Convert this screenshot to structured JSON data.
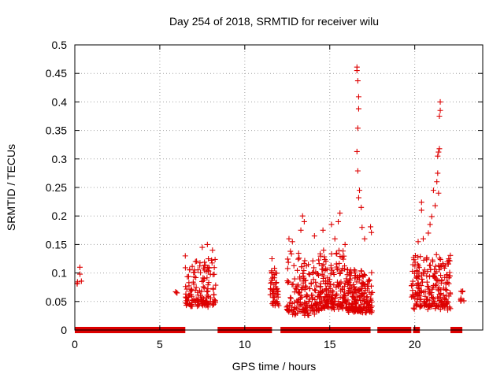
{
  "chart_data": {
    "type": "scatter",
    "title": "Day 254 of 2018, SRMTID for receiver wilu",
    "xlabel": "GPS time / hours",
    "ylabel": "SRMTID / TECUs",
    "xlim": [
      0,
      24
    ],
    "ylim": [
      0,
      0.5
    ],
    "xticks": [
      0,
      5,
      10,
      15,
      20
    ],
    "yticks": [
      0,
      0.05,
      0.1,
      0.15,
      0.2,
      0.25,
      0.3,
      0.35,
      0.4,
      0.45,
      0.5
    ],
    "xtick_labels": [
      "0",
      "5",
      "10",
      "15",
      "20"
    ],
    "ytick_labels": [
      "0",
      "0.05",
      "0.1",
      "0.15",
      "0.2",
      "0.25",
      "0.3",
      "0.35",
      "0.4",
      "0.45",
      "0.5"
    ],
    "grid": true,
    "marker": "+",
    "series_color": "#dd0000",
    "zero_bands": [
      [
        0,
        6.5
      ],
      [
        8.4,
        11.6
      ],
      [
        12.1,
        17.4
      ],
      [
        17.8,
        19.8
      ],
      [
        19.9,
        20.3
      ],
      [
        22.1,
        22.8
      ]
    ],
    "clusters": [
      {
        "x0": 0.0,
        "x1": 0.4,
        "n": 5,
        "base": 0.08,
        "spread": 0.025,
        "peaks": [
          [
            0.3,
            0.11
          ]
        ]
      },
      {
        "x0": 5.9,
        "x1": 6.1,
        "n": 3,
        "base": 0.065,
        "spread": 0.005,
        "peaks": []
      },
      {
        "x0": 6.5,
        "x1": 8.3,
        "n": 150,
        "base": 0.04,
        "spread": 0.09,
        "peaks": [
          [
            6.5,
            0.13
          ],
          [
            7.1,
            0.12
          ],
          [
            7.8,
            0.15
          ],
          [
            8.1,
            0.14
          ],
          [
            7.5,
            0.145
          ]
        ]
      },
      {
        "x0": 11.5,
        "x1": 12.0,
        "n": 50,
        "base": 0.04,
        "spread": 0.07,
        "peaks": [
          [
            11.6,
            0.125
          ],
          [
            11.8,
            0.1
          ]
        ]
      },
      {
        "x0": 12.4,
        "x1": 14.4,
        "n": 170,
        "base": 0.025,
        "spread": 0.115,
        "peaks": [
          [
            13.4,
            0.2
          ],
          [
            13.5,
            0.19
          ],
          [
            13.3,
            0.175
          ],
          [
            12.6,
            0.16
          ],
          [
            12.8,
            0.155
          ],
          [
            14.1,
            0.165
          ]
        ]
      },
      {
        "x0": 14.4,
        "x1": 16.0,
        "n": 180,
        "base": 0.035,
        "spread": 0.11,
        "peaks": [
          [
            14.6,
            0.175
          ],
          [
            15.1,
            0.185
          ],
          [
            15.5,
            0.19
          ],
          [
            15.6,
            0.205
          ],
          [
            15.9,
            0.15
          ],
          [
            15.3,
            0.16
          ]
        ]
      },
      {
        "x0": 16.0,
        "x1": 17.5,
        "n": 200,
        "base": 0.03,
        "spread": 0.08,
        "peaks": [
          [
            16.6,
            0.461
          ],
          [
            16.6,
            0.455
          ],
          [
            16.65,
            0.437
          ],
          [
            16.7,
            0.409
          ],
          [
            16.7,
            0.388
          ],
          [
            16.65,
            0.354
          ],
          [
            16.6,
            0.313
          ],
          [
            16.65,
            0.279
          ],
          [
            16.75,
            0.245
          ],
          [
            16.7,
            0.232
          ],
          [
            16.85,
            0.215
          ],
          [
            16.9,
            0.18
          ],
          [
            17.05,
            0.16
          ],
          [
            17.4,
            0.181
          ],
          [
            17.45,
            0.171
          ]
        ]
      },
      {
        "x0": 19.8,
        "x1": 22.1,
        "n": 230,
        "base": 0.035,
        "spread": 0.1,
        "peaks": [
          [
            21.5,
            0.4
          ],
          [
            21.5,
            0.385
          ],
          [
            21.45,
            0.375
          ],
          [
            21.45,
            0.318
          ],
          [
            21.4,
            0.312
          ],
          [
            21.35,
            0.305
          ],
          [
            21.35,
            0.275
          ],
          [
            21.3,
            0.26
          ],
          [
            21.4,
            0.24
          ],
          [
            21.1,
            0.245
          ],
          [
            20.4,
            0.224
          ],
          [
            20.4,
            0.21
          ],
          [
            21.2,
            0.218
          ],
          [
            21.0,
            0.199
          ],
          [
            20.9,
            0.185
          ],
          [
            20.5,
            0.16
          ],
          [
            20.2,
            0.155
          ],
          [
            20.8,
            0.17
          ],
          [
            22.0,
            0.125
          ]
        ]
      },
      {
        "x0": 22.7,
        "x1": 22.9,
        "n": 8,
        "base": 0.05,
        "spread": 0.02,
        "peaks": [
          [
            22.8,
            0.067
          ]
        ]
      }
    ]
  }
}
